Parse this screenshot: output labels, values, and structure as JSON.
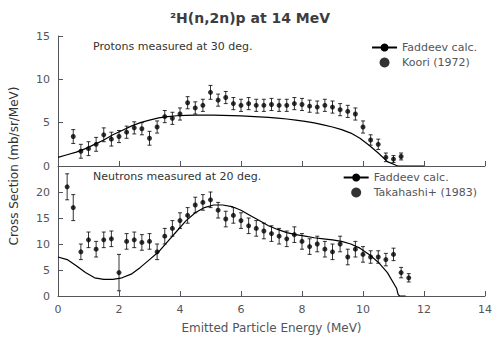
{
  "chart_data": [
    {
      "type": "line",
      "title": "²H(n,2n)p at 14 MeV",
      "ylabel": "Cross Section (mb/sr/MeV)",
      "annotations": [
        "Protons measured at 30 deg."
      ],
      "xlim": [
        0,
        14
      ],
      "xticks": [
        0,
        2,
        4,
        6,
        8,
        10,
        12,
        14
      ],
      "ylim": [
        0,
        15
      ],
      "yticks": [
        0,
        5,
        10,
        15
      ],
      "tick_labels": "y",
      "grid": false,
      "legend": "upper right",
      "series": [
        {
          "name": "Faddeev calc.",
          "type": "line",
          "color": "#000000",
          "line_style": "solid",
          "x": [
            0.0,
            0.3,
            0.6,
            0.9,
            1.2,
            1.5,
            1.8,
            2.1,
            2.4,
            2.7,
            3.0,
            3.3,
            3.6,
            3.9,
            4.2,
            4.5,
            4.8,
            5.1,
            5.4,
            5.7,
            6.0,
            6.3,
            6.6,
            6.9,
            7.2,
            7.5,
            7.8,
            8.1,
            8.4,
            8.7,
            9.0,
            9.3,
            9.6,
            9.9,
            10.2,
            10.5,
            10.8,
            11.1,
            11.15,
            11.2,
            11.4,
            11.7,
            12.0
          ],
          "values": [
            1.0,
            1.3,
            1.6,
            2.0,
            2.5,
            3.0,
            3.6,
            4.1,
            4.6,
            5.0,
            5.3,
            5.55,
            5.7,
            5.8,
            5.85,
            5.87,
            5.88,
            5.87,
            5.85,
            5.82,
            5.78,
            5.73,
            5.67,
            5.6,
            5.52,
            5.42,
            5.3,
            5.15,
            4.97,
            4.75,
            4.5,
            4.2,
            3.8,
            3.2,
            2.4,
            1.5,
            0.5,
            0.05,
            0.0,
            0.0,
            0.0,
            0.0,
            0.0
          ]
        },
        {
          "name": "Koori (1972)",
          "type": "scatter",
          "color": "#000000",
          "marker": "circle",
          "x": [
            0.5,
            0.75,
            1.0,
            1.25,
            1.5,
            1.75,
            2.0,
            2.25,
            2.5,
            2.75,
            3.0,
            3.25,
            3.5,
            3.75,
            4.0,
            4.25,
            4.5,
            4.75,
            5.0,
            5.25,
            5.5,
            5.75,
            6.0,
            6.25,
            6.5,
            6.75,
            7.0,
            7.25,
            7.5,
            7.75,
            8.0,
            8.25,
            8.5,
            8.75,
            9.0,
            9.25,
            9.5,
            9.75,
            10.0,
            10.25,
            10.5,
            10.75,
            11.0,
            11.25
          ],
          "values": [
            3.4,
            1.7,
            2.0,
            2.5,
            3.6,
            3.1,
            3.4,
            3.9,
            4.4,
            4.3,
            3.2,
            4.5,
            5.7,
            5.5,
            6.0,
            7.3,
            6.7,
            7.0,
            8.5,
            7.6,
            7.9,
            7.2,
            7.0,
            7.2,
            7.0,
            7.0,
            7.1,
            7.0,
            7.0,
            7.2,
            7.1,
            6.9,
            6.8,
            7.0,
            6.8,
            6.5,
            6.3,
            6.0,
            4.5,
            3.0,
            2.5,
            1.0,
            0.8,
            1.1
          ],
          "yerr": [
            0.8,
            0.8,
            0.8,
            0.8,
            0.8,
            0.8,
            0.7,
            0.7,
            0.7,
            0.7,
            0.8,
            0.7,
            0.7,
            0.7,
            0.7,
            0.7,
            0.7,
            0.7,
            0.8,
            0.7,
            0.7,
            0.7,
            0.7,
            0.7,
            0.7,
            0.7,
            0.7,
            0.7,
            0.7,
            0.7,
            0.7,
            0.7,
            0.7,
            0.7,
            0.7,
            0.7,
            0.7,
            0.7,
            0.7,
            0.6,
            0.6,
            0.5,
            0.4,
            0.4
          ]
        }
      ]
    },
    {
      "type": "line",
      "xlabel": "Emitted Particle Energy (MeV)",
      "annotations": [
        "Neutrons measured at 20 deg."
      ],
      "xlim": [
        0,
        14
      ],
      "xticks": [
        0,
        2,
        4,
        6,
        8,
        10,
        12,
        14
      ],
      "ylim": [
        0,
        25
      ],
      "yticks": [
        0,
        5,
        10,
        15,
        20
      ],
      "grid": false,
      "legend": "upper right",
      "series": [
        {
          "name": "Faddeev calc.",
          "type": "line",
          "color": "#000000",
          "line_style": "solid",
          "x": [
            0.0,
            0.3,
            0.6,
            0.9,
            1.2,
            1.5,
            1.8,
            2.1,
            2.4,
            2.7,
            3.0,
            3.3,
            3.6,
            3.9,
            4.2,
            4.5,
            4.8,
            5.1,
            5.4,
            5.7,
            6.0,
            6.3,
            6.6,
            6.9,
            7.2,
            7.5,
            7.8,
            8.1,
            8.4,
            8.7,
            9.0,
            9.3,
            9.6,
            9.9,
            10.2,
            10.5,
            10.8,
            11.1,
            11.15,
            11.2,
            11.4
          ],
          "values": [
            7.5,
            7.0,
            5.8,
            4.5,
            3.5,
            3.2,
            3.2,
            3.5,
            4.2,
            5.5,
            7.0,
            8.5,
            10.5,
            12.5,
            14.5,
            16.0,
            17.0,
            17.5,
            17.5,
            17.2,
            16.5,
            15.5,
            14.5,
            13.5,
            12.8,
            12.2,
            11.8,
            11.5,
            11.2,
            11.0,
            10.8,
            10.5,
            10.0,
            9.2,
            8.0,
            6.5,
            4.5,
            1.5,
            0.3,
            0.0,
            0.0
          ]
        },
        {
          "name": "Takahashi+ (1983)",
          "type": "scatter",
          "color": "#000000",
          "marker": "circle",
          "x": [
            0.3,
            0.5,
            0.75,
            1.0,
            1.25,
            1.5,
            1.75,
            2.0,
            2.25,
            2.5,
            2.75,
            3.0,
            3.25,
            3.5,
            3.75,
            4.0,
            4.25,
            4.5,
            4.75,
            5.0,
            5.25,
            5.5,
            5.75,
            6.0,
            6.25,
            6.5,
            6.75,
            7.0,
            7.25,
            7.5,
            7.75,
            8.0,
            8.25,
            8.5,
            8.75,
            9.0,
            9.25,
            9.5,
            9.75,
            10.0,
            10.25,
            10.5,
            10.75,
            11.0,
            11.25,
            11.5
          ],
          "values": [
            21.0,
            17.0,
            8.5,
            10.8,
            9.0,
            10.8,
            11.0,
            4.5,
            10.5,
            10.8,
            10.3,
            10.5,
            8.5,
            11.5,
            13.0,
            14.5,
            15.5,
            17.5,
            18.0,
            18.5,
            16.5,
            14.8,
            15.5,
            14.5,
            13.5,
            13.0,
            12.5,
            12.0,
            11.5,
            11.0,
            11.8,
            10.5,
            9.5,
            10.0,
            9.0,
            8.5,
            10.0,
            7.5,
            9.0,
            8.0,
            7.5,
            7.5,
            7.0,
            8.0,
            4.5,
            3.5
          ],
          "yerr": [
            2.5,
            2.5,
            1.5,
            1.5,
            1.5,
            1.5,
            1.5,
            3.5,
            1.5,
            1.5,
            1.5,
            1.5,
            1.5,
            1.5,
            1.5,
            1.5,
            1.5,
            1.5,
            1.5,
            1.5,
            1.5,
            1.5,
            1.5,
            1.5,
            1.5,
            1.5,
            1.5,
            1.5,
            1.5,
            1.5,
            1.5,
            1.5,
            1.5,
            1.5,
            1.5,
            1.5,
            1.5,
            1.5,
            1.5,
            1.5,
            1.2,
            1.2,
            1.2,
            1.2,
            1.0,
            0.8
          ]
        }
      ]
    }
  ]
}
